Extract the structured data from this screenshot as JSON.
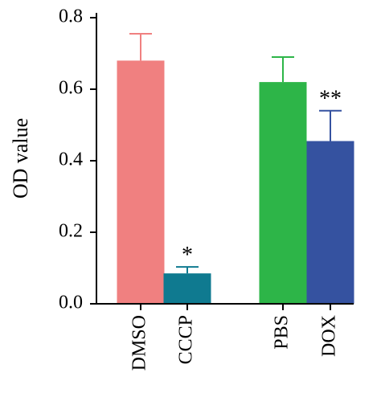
{
  "chart_data": {
    "type": "bar",
    "categories": [
      "DMSO",
      "CCCP",
      "PBS",
      "DOX"
    ],
    "values": [
      0.68,
      0.085,
      0.62,
      0.455
    ],
    "error_upper": [
      0.075,
      0.018,
      0.07,
      0.085
    ],
    "annotations": [
      "",
      "*",
      "",
      "**"
    ],
    "colors": [
      "#f08080",
      "#0f7a90",
      "#2db548",
      "#3552a0"
    ],
    "ylabel": "OD value",
    "ylim": [
      0,
      0.8
    ],
    "yticks": [
      "0.0",
      "0.2",
      "0.4",
      "0.6",
      "0.8"
    ],
    "grid": false
  }
}
